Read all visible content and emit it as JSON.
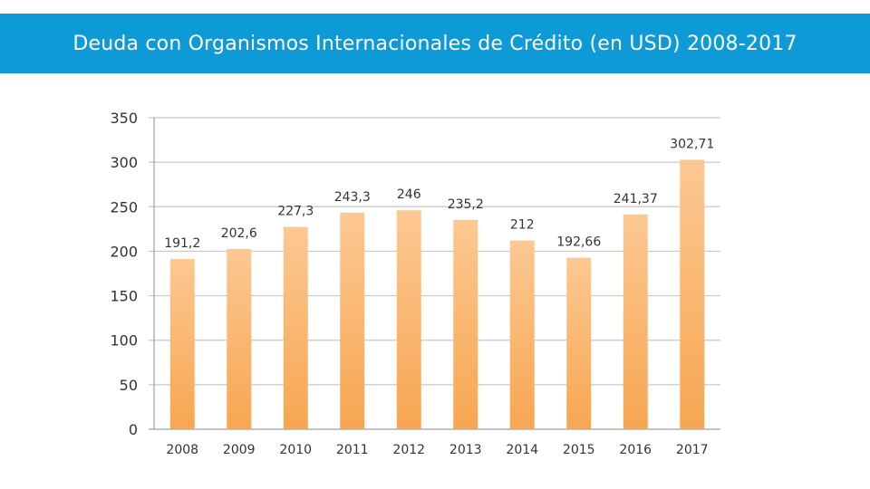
{
  "title": "Deuda con Organismos Internacionales de Crédito (en USD) 2008-2017",
  "colors": {
    "banner": "#0d9ad6",
    "bar_top": "#fcc892",
    "bar_bottom": "#f7a651",
    "grid": "#c8c8c8",
    "axis": "#a0a0a0",
    "text": "#333333"
  },
  "chart_data": {
    "type": "bar",
    "title": "Deuda con Organismos Internacionales de Crédito (en USD) 2008-2017",
    "xlabel": "",
    "ylabel": "",
    "categories": [
      "2008",
      "2009",
      "2010",
      "2011",
      "2012",
      "2013",
      "2014",
      "2015",
      "2016",
      "2017"
    ],
    "values": [
      191.2,
      202.6,
      227.3,
      243.3,
      246,
      235.2,
      212,
      192.66,
      241.37,
      302.71
    ],
    "value_labels": [
      "191,2",
      "202,6",
      "227,3",
      "243,3",
      "246",
      "235,2",
      "212",
      "192,66",
      "241,37",
      "302,71"
    ],
    "ylim": [
      0,
      350
    ],
    "yticks": [
      0,
      50,
      100,
      150,
      200,
      250,
      300,
      350
    ],
    "grid": true,
    "legend": "none"
  }
}
